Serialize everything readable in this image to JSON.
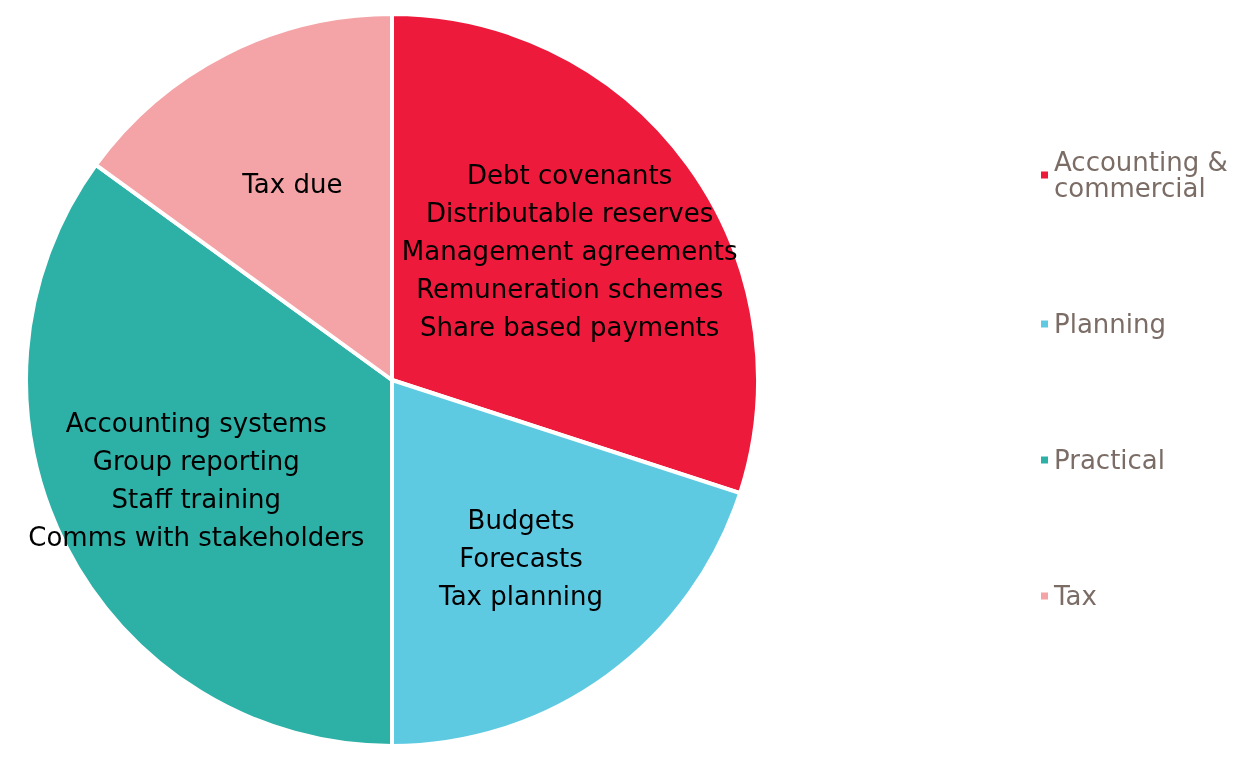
{
  "chart_data": {
    "type": "pie",
    "categories": [
      "Accounting & commercial",
      "Planning",
      "Practical",
      "Tax"
    ],
    "values": [
      30,
      20,
      35,
      15
    ],
    "colors": [
      "#ed1a3b",
      "#5ecae2",
      "#2db0a6",
      "#f4a3a6"
    ],
    "annotations": [
      "Debt covenants\nDistributable reserves\nManagement agreements\nRemuneration schemes\nShare based payments",
      "Budgets\nForecasts\nTax planning",
      "Accounting systems\nGroup reporting\nStaff training\nComms with stakeholders",
      "Tax due"
    ],
    "legend": "right"
  }
}
